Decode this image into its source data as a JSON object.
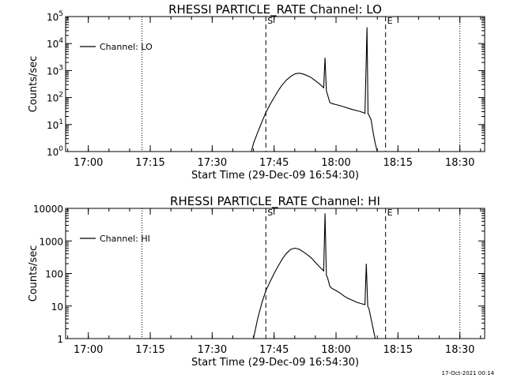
{
  "footer": {
    "timestamp": "17-Oct-2021 00:14"
  },
  "chart_data": [
    {
      "type": "line",
      "title": "RHESSI PARTICLE_RATE Channel: LO",
      "xlabel": "Start Time (29-Dec-09 16:54:30)",
      "ylabel": "Counts/sec",
      "y_scale": "log",
      "xlim_minutes_after_start": [
        0,
        101.5
      ],
      "ylim": [
        1,
        100000
      ],
      "x_ticks": [
        "17:00",
        "17:15",
        "17:30",
        "17:45",
        "18:00",
        "18:15",
        "18:30"
      ],
      "y_ticks": [
        {
          "value": 1,
          "mantissa": "10",
          "exp": "0"
        },
        {
          "value": 10,
          "mantissa": "10",
          "exp": "1"
        },
        {
          "value": 100,
          "mantissa": "10",
          "exp": "2"
        },
        {
          "value": 1000,
          "mantissa": "10",
          "exp": "3"
        },
        {
          "value": 10000,
          "mantissa": "10",
          "exp": "4"
        },
        {
          "value": 100000,
          "mantissa": "10",
          "exp": "5"
        }
      ],
      "legend": {
        "label": "Channel: LO",
        "placement": "top-left"
      },
      "markers": [
        {
          "time": "17:13",
          "style": "dotted",
          "label": ""
        },
        {
          "time": "17:43",
          "style": "dashed",
          "label": "S"
        },
        {
          "time": "18:12",
          "style": "dashed",
          "label": "E"
        },
        {
          "time": "18:30",
          "style": "dotted",
          "label": ""
        }
      ],
      "series": [
        {
          "x": [
            "17:39:30",
            "17:40",
            "17:41",
            "17:42",
            "17:43",
            "17:44",
            "17:45",
            "17:46",
            "17:47",
            "17:48",
            "17:49",
            "17:50",
            "17:51",
            "17:52",
            "17:53",
            "17:54",
            "17:55",
            "17:56",
            "17:57",
            "17:57:20",
            "17:57:40",
            "17:58",
            "17:58:30",
            "17:59",
            "18:00",
            "18:01",
            "18:02",
            "18:03",
            "18:04",
            "18:05",
            "18:06",
            "18:07",
            "18:07:30",
            "18:07:45",
            "18:08",
            "18:08:30",
            "18:09",
            "18:09:30",
            "18:10"
          ],
          "y": [
            1,
            2,
            5,
            12,
            28,
            55,
            100,
            180,
            300,
            450,
            600,
            750,
            800,
            750,
            650,
            550,
            420,
            320,
            230,
            3000,
            180,
            120,
            65,
            60,
            55,
            50,
            45,
            40,
            36,
            33,
            30,
            26,
            40000,
            25,
            22,
            15,
            5,
            2,
            1
          ]
        }
      ]
    },
    {
      "type": "line",
      "title": "RHESSI PARTICLE_RATE Channel: HI",
      "xlabel": "Start Time (29-Dec-09 16:54:30)",
      "ylabel": "Counts/sec",
      "y_scale": "log",
      "xlim_minutes_after_start": [
        0,
        101.5
      ],
      "ylim": [
        1,
        10000
      ],
      "x_ticks": [
        "17:00",
        "17:15",
        "17:30",
        "17:45",
        "18:00",
        "18:15",
        "18:30"
      ],
      "y_ticks": [
        {
          "value": 1,
          "label": "1"
        },
        {
          "value": 10,
          "label": "10"
        },
        {
          "value": 100,
          "label": "100"
        },
        {
          "value": 1000,
          "label": "1000"
        },
        {
          "value": 10000,
          "label": "10000"
        }
      ],
      "legend": {
        "label": "Channel: HI",
        "placement": "top-left"
      },
      "markers": [
        {
          "time": "17:13",
          "style": "dotted",
          "label": ""
        },
        {
          "time": "17:43",
          "style": "dashed",
          "label": "S"
        },
        {
          "time": "18:12",
          "style": "dashed",
          "label": "E"
        },
        {
          "time": "18:30",
          "style": "dotted",
          "label": ""
        }
      ],
      "series": [
        {
          "x": [
            "17:40",
            "17:41",
            "17:42",
            "17:43",
            "17:44",
            "17:45",
            "17:46",
            "17:47",
            "17:48",
            "17:49",
            "17:50",
            "17:51",
            "17:52",
            "17:53",
            "17:54",
            "17:55",
            "17:56",
            "17:57",
            "17:57:20",
            "17:57:40",
            "17:58",
            "17:58:30",
            "17:59",
            "18:00",
            "18:01",
            "18:02",
            "18:03",
            "18:04",
            "18:05",
            "18:06",
            "18:07",
            "18:07:20",
            "18:07:40",
            "18:08",
            "18:08:30",
            "18:09",
            "18:09:30"
          ],
          "y": [
            1,
            4,
            12,
            30,
            55,
            100,
            170,
            280,
            420,
            550,
            600,
            560,
            470,
            380,
            300,
            220,
            160,
            120,
            7000,
            90,
            70,
            40,
            35,
            30,
            25,
            20,
            17,
            15,
            13,
            12,
            11,
            200,
            10,
            8,
            4,
            2,
            1
          ]
        }
      ]
    }
  ]
}
